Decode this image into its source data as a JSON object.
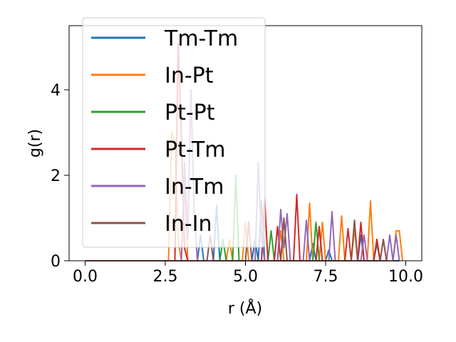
{
  "chart_data": {
    "type": "line",
    "title": "",
    "xlabel": "r (Å)",
    "ylabel": "g(r)",
    "xlim": [
      -0.5,
      10.5
    ],
    "ylim": [
      0,
      5.5
    ],
    "xticks": [
      "0.0",
      "2.5",
      "5.0",
      "7.5",
      "10.0"
    ],
    "xtick_values": [
      0,
      2.5,
      5.0,
      7.5,
      10.0
    ],
    "yticks": [
      "0",
      "2",
      "4"
    ],
    "ytick_values": [
      0,
      2,
      4
    ],
    "grid": false,
    "legend_position": "top-left",
    "series": [
      {
        "name": "Tm-Tm",
        "color": "#1f77b4",
        "x": [
          0,
          3.5,
          3.6,
          3.7,
          3.8,
          4.0,
          4.1,
          4.2,
          5.2,
          5.3,
          5.4,
          5.5,
          5.6,
          7.0,
          7.1,
          7.2,
          7.5,
          7.6,
          7.7,
          8.5,
          8.6,
          8.7,
          9.0,
          9.1,
          9.2,
          9.8
        ],
        "y": [
          0,
          0,
          0.6,
          0,
          0,
          0,
          1.3,
          0,
          0,
          0.5,
          0,
          1.4,
          0,
          0,
          0.4,
          0,
          0,
          0.25,
          0,
          0,
          0.6,
          0,
          0,
          0.4,
          0,
          0
        ]
      },
      {
        "name": "In-Pt",
        "color": "#ff7f0e",
        "x": [
          0,
          2.6,
          2.7,
          2.8,
          2.9,
          3.0,
          3.1,
          3.2,
          4.4,
          4.5,
          4.6,
          4.9,
          5.0,
          5.1,
          6.0,
          6.1,
          6.2,
          6.9,
          7.0,
          7.1,
          7.3,
          7.4,
          7.5,
          7.9,
          8.0,
          8.1,
          8.3,
          8.4,
          8.5,
          8.8,
          8.9,
          9.0,
          9.2,
          9.3,
          9.4,
          9.6,
          9.7,
          9.8,
          9.9
        ],
        "y": [
          0,
          0,
          3.0,
          2.8,
          0.5,
          0,
          1.8,
          0,
          0,
          0.5,
          0,
          0,
          0.9,
          0,
          0,
          0.7,
          0,
          0,
          1.35,
          0,
          0,
          0.9,
          0,
          0,
          1.05,
          0,
          0,
          0.75,
          0,
          0,
          1.4,
          0,
          0,
          0.5,
          0,
          0,
          0.7,
          0.7,
          0
        ]
      },
      {
        "name": "Pt-Pt",
        "color": "#2ca02c",
        "x": [
          0,
          4.2,
          4.3,
          4.4,
          4.6,
          4.7,
          4.8,
          5.7,
          5.8,
          5.9,
          7.1,
          7.2,
          7.3,
          9.0,
          9.1,
          9.2
        ],
        "y": [
          0,
          0,
          0.5,
          0,
          0,
          2.0,
          0,
          0,
          0.7,
          0,
          0,
          0.9,
          0,
          0,
          0.5,
          0
        ]
      },
      {
        "name": "Pt-Tm",
        "color": "#d62728",
        "x": [
          0,
          2.8,
          2.9,
          3.0,
          3.1,
          3.2,
          5.5,
          5.6,
          5.7,
          5.9,
          6.0,
          6.1,
          6.5,
          6.6,
          6.7,
          7.2,
          7.3,
          7.4,
          8.1,
          8.2,
          8.3,
          8.5,
          8.6,
          8.7,
          9.0,
          9.1,
          9.2
        ],
        "y": [
          0,
          0,
          5.1,
          3.0,
          0.3,
          0,
          0,
          1.45,
          0,
          0,
          0.8,
          0,
          0,
          1.55,
          0,
          0,
          0.8,
          0,
          0,
          0.75,
          0,
          0,
          0.9,
          0,
          0,
          0.5,
          0
        ]
      },
      {
        "name": "In-Tm",
        "color": "#9467bd",
        "x": [
          0,
          3.0,
          3.1,
          3.2,
          3.3,
          3.4,
          3.5,
          5.3,
          5.4,
          5.5,
          5.6,
          6.0,
          6.1,
          6.2,
          6.3,
          6.4,
          6.8,
          6.9,
          7.0,
          7.6,
          7.7,
          7.8,
          8.6,
          8.7,
          8.8,
          9.4,
          9.5,
          9.6,
          9.7,
          9.8
        ],
        "y": [
          0,
          0,
          2.3,
          0.5,
          4.0,
          1.2,
          0,
          0,
          2.3,
          0.5,
          0,
          0,
          1.2,
          0.3,
          1.1,
          0,
          0,
          0.95,
          0,
          0,
          1.15,
          0,
          0,
          0.6,
          0,
          0,
          0.6,
          0,
          0.6,
          0
        ]
      },
      {
        "name": "In-In",
        "color": "#8c564b",
        "x": [
          0,
          3.8,
          3.9,
          4.0,
          5.0,
          5.1,
          5.2,
          6.1,
          6.2,
          6.3,
          8.3,
          8.4,
          8.5,
          9.2,
          9.3,
          9.4
        ],
        "y": [
          0,
          0,
          0.6,
          0,
          0,
          0.9,
          0,
          0,
          1.0,
          0,
          0,
          0.95,
          0,
          0,
          0.5,
          0
        ]
      }
    ]
  }
}
